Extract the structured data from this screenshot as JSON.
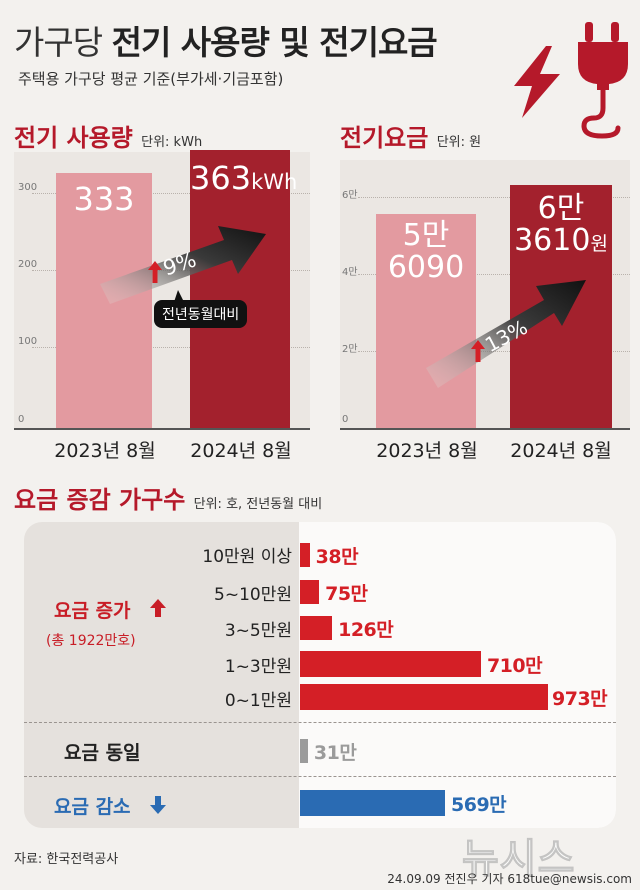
{
  "header": {
    "title_light": "가구당",
    "title_bold": "전기 사용량 및 전기요금",
    "subtitle": "주택용 가구당 평균 기준(부가세·기금포함)"
  },
  "usage": {
    "title": "전기 사용량",
    "unit": "단위: kWh",
    "bar_labels": [
      "333",
      "363"
    ],
    "bar2_unit": "kWh",
    "change": "9%",
    "callout": "전년동월대비"
  },
  "fee": {
    "title": "전기요금",
    "unit": "단위: 원",
    "bar1_lines": [
      "5만",
      "6090"
    ],
    "bar2_lines": [
      "6만",
      "3610"
    ],
    "bar2_unit": "원",
    "change": "13%"
  },
  "households": {
    "title": "요금 증감 가구수",
    "unit": "단위: 호, 전년동월 대비",
    "increase_label": "요금 증가",
    "increase_total": "(총 1922만호)",
    "same_label": "요금 동일",
    "decrease_label": "요금 감소"
  },
  "footer": {
    "source": "자료: 한국전력공사",
    "credit": "24.09.09 전진우 기자 618tue@newsis.com",
    "watermark": "뉴시스"
  },
  "colors": {
    "red": "#b5192a",
    "dark_red": "#a3212d",
    "light_red": "#e39aa0",
    "bright_red": "#d41f26",
    "gray": "#9b9b9b",
    "blue": "#2a6bb3"
  },
  "icons": [
    "lightning-icon",
    "plug-icon",
    "up-arrow-icon",
    "down-arrow-icon"
  ],
  "chart_data": [
    {
      "type": "bar",
      "title": "전기 사용량",
      "unit": "kWh",
      "categories": [
        "2023년 8월",
        "2024년 8월"
      ],
      "values": [
        333,
        363
      ],
      "ylim": [
        0,
        363
      ],
      "yticks": [
        0,
        100,
        200,
        300
      ],
      "ytick_labels": [
        "0",
        "100",
        "200",
        "300"
      ],
      "grid": true,
      "annotation": "9%"
    },
    {
      "type": "bar",
      "title": "전기요금",
      "unit": "원",
      "categories": [
        "2023년 8월",
        "2024년 8월"
      ],
      "values": [
        56090,
        63610
      ],
      "ylim": [
        0,
        63610
      ],
      "yticks": [
        0,
        20000,
        40000,
        60000
      ],
      "ytick_labels": [
        "0",
        "2만",
        "4만",
        "6만"
      ],
      "grid": true,
      "annotation": "13%"
    },
    {
      "type": "bar",
      "orientation": "horizontal",
      "title": "요금 증감 가구수",
      "unit": "만호",
      "categories": [
        "10만원 이상",
        "5~10만원",
        "3~5만원",
        "1~3만원",
        "0~1만원",
        "요금 동일",
        "요금 감소"
      ],
      "values": [
        38,
        75,
        126,
        710,
        973,
        31,
        569
      ],
      "value_labels": [
        "38만",
        "75만",
        "126만",
        "710만",
        "973만",
        "31만",
        "569만"
      ],
      "groups": [
        "increase",
        "increase",
        "increase",
        "increase",
        "increase",
        "same",
        "decrease"
      ],
      "xlim": [
        0,
        973
      ],
      "grid": false
    }
  ]
}
